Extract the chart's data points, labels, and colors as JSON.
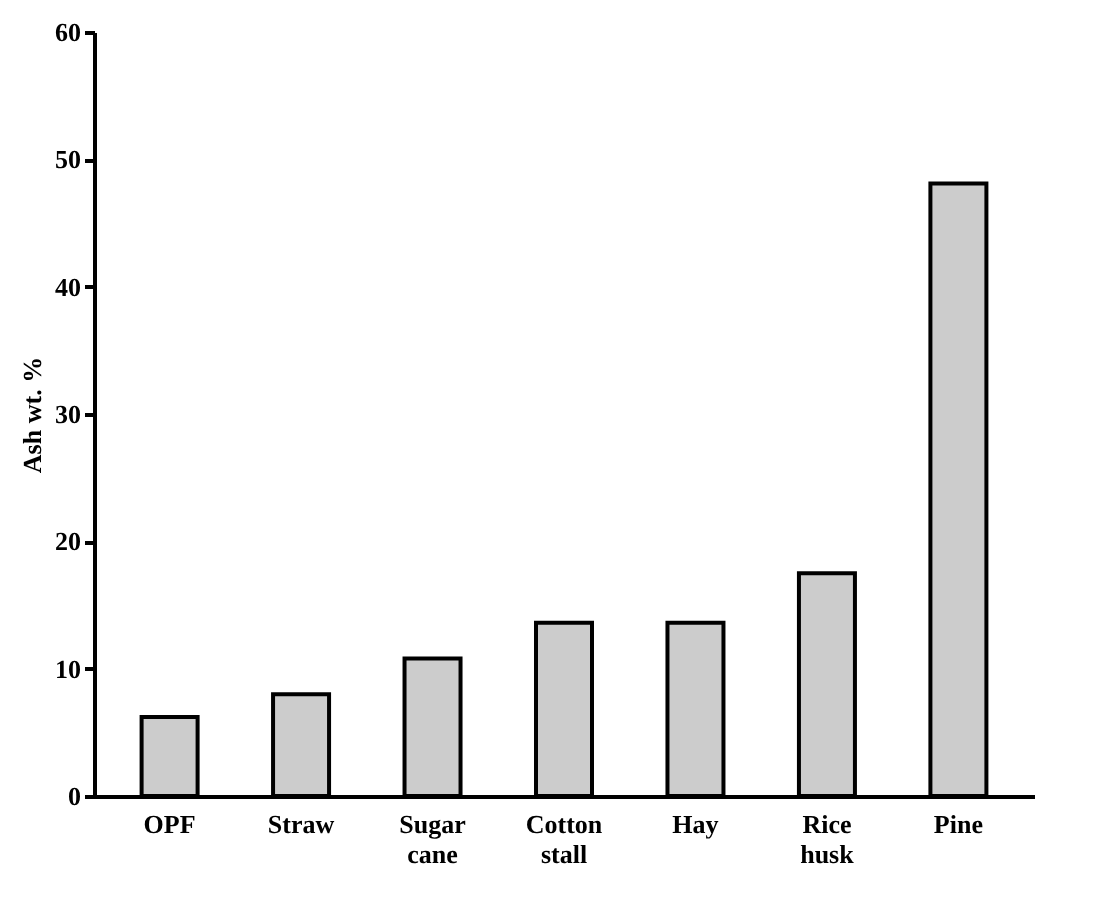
{
  "chart_data": {
    "type": "bar",
    "ylabel": "Ash wt. %",
    "categories": [
      "OPF",
      "Straw",
      "Sugar cane",
      "Cotton stall",
      "Hay",
      "Rice husk",
      "Pine"
    ],
    "values": [
      6.2,
      8.0,
      10.8,
      13.6,
      13.6,
      17.5,
      48.1
    ],
    "color": "#cccccc",
    "ylim": [
      0,
      60
    ],
    "yticks": [
      0,
      10,
      20,
      30,
      40,
      50,
      60
    ],
    "grid": false
  }
}
